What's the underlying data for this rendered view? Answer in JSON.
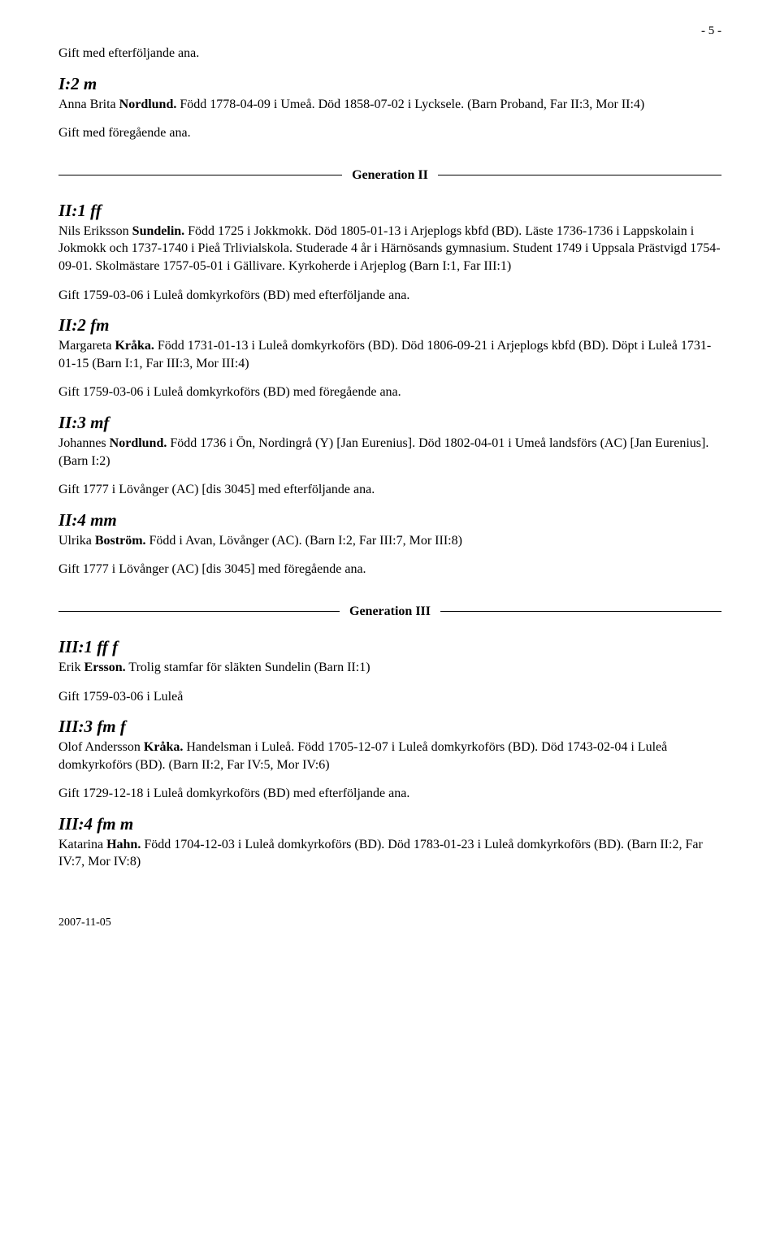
{
  "page_number": "- 5 -",
  "footer_date": "2007-11-05",
  "gen2_label": "Generation II",
  "gen3_label": "Generation III",
  "intro": {
    "line1": "Gift med efterföljande ana."
  },
  "i2m": {
    "id": "I:2 m",
    "name_prefix": "Anna Brita ",
    "surname": "Nordlund.",
    "rest": " Född 1778-04-09 i Umeå. Död 1858-07-02 i Lycksele. (Barn Proband, Far II:3, Mor II:4)",
    "gift": "Gift med föregående ana."
  },
  "ii1ff": {
    "id": "II:1 ff",
    "name_prefix": "Nils Eriksson ",
    "surname": "Sundelin.",
    "rest": " Född 1725 i Jokkmokk. Död 1805-01-13 i Arjeplogs kbfd (BD). Läste 1736-1736 i Lappskolain i Jokmokk och 1737-1740 i Pieå Trlivialskola. Studerade 4 år i Härnösands gymnasium. Student 1749 i Uppsala Prästvigd 1754-09-01. Skolmästare 1757-05-01 i Gällivare. Kyrkoherde i Arjeplog (Barn I:1, Far III:1)",
    "gift": "Gift 1759-03-06 i Luleå domkyrkoförs (BD) med efterföljande ana."
  },
  "ii2fm": {
    "id": "II:2 fm",
    "name_prefix": "Margareta ",
    "surname": "Kråka.",
    "rest": " Född 1731-01-13 i Luleå domkyrkoförs (BD). Död 1806-09-21 i Arjeplogs kbfd (BD). Döpt i Luleå 1731-01-15 (Barn I:1, Far III:3, Mor III:4)",
    "gift": "Gift 1759-03-06 i Luleå domkyrkoförs (BD) med föregående ana."
  },
  "ii3mf": {
    "id": "II:3 mf",
    "name_prefix": "Johannes ",
    "surname": "Nordlund.",
    "rest": " Född 1736 i Ön, Nordingrå (Y) [Jan Eurenius]. Död 1802-04-01 i Umeå landsförs (AC) [Jan Eurenius]. (Barn I:2)",
    "gift": "Gift 1777 i Lövånger (AC) [dis 3045] med efterföljande ana."
  },
  "ii4mm": {
    "id": "II:4 mm",
    "name_prefix": "Ulrika ",
    "surname": "Boström.",
    "rest": " Född i Avan, Lövånger (AC). (Barn I:2, Far III:7, Mor III:8)",
    "gift": "Gift 1777 i Lövånger (AC) [dis 3045] med föregående ana."
  },
  "iii1fff": {
    "id": "III:1 ff f",
    "name_prefix": "Erik ",
    "surname": "Ersson.",
    "rest": " Trolig stamfar för släkten Sundelin (Barn II:1)",
    "gift": "Gift 1759-03-06 i Luleå"
  },
  "iii3fmf": {
    "id": "III:3 fm f",
    "name_prefix": "Olof Andersson ",
    "surname": "Kråka.",
    "rest": " Handelsman i Luleå. Född 1705-12-07 i Luleå domkyrkoförs (BD). Död 1743-02-04 i Luleå domkyrkoförs (BD). (Barn II:2, Far IV:5, Mor IV:6)",
    "gift": "Gift 1729-12-18 i Luleå domkyrkoförs (BD) med efterföljande ana."
  },
  "iii4fmm": {
    "id": "III:4 fm m",
    "name_prefix": "Katarina ",
    "surname": "Hahn.",
    "rest": " Född 1704-12-03 i Luleå domkyrkoförs (BD). Död 1783-01-23 i Luleå domkyrkoförs (BD). (Barn II:2, Far IV:7, Mor IV:8)"
  }
}
